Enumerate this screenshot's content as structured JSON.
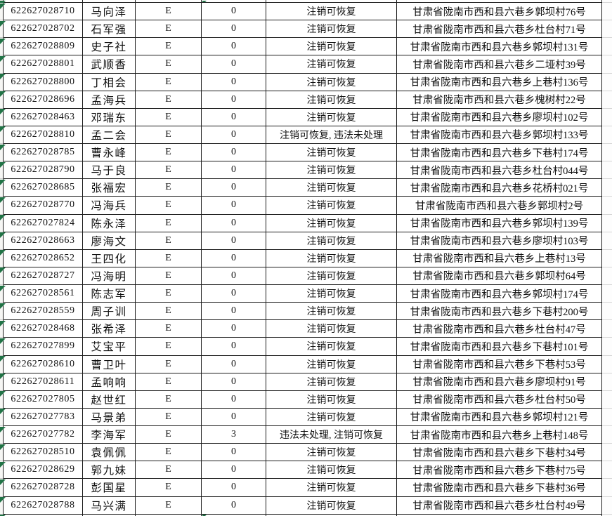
{
  "sheet": {
    "kind": "spreadsheet-grid",
    "fields": [
      "id",
      "name",
      "grade",
      "count",
      "status",
      "address"
    ],
    "rows": [
      {
        "id": "622627028710",
        "name": "马向泽",
        "grade": "E",
        "count": "0",
        "status": "注销可恢复",
        "address": "甘肃省陇南市西和县六巷乡郭坝村76号"
      },
      {
        "id": "622627028702",
        "name": "石军强",
        "grade": "E",
        "count": "0",
        "status": "注销可恢复",
        "address": "甘肃省陇南市西和县六巷乡杜台村71号"
      },
      {
        "id": "622627028809",
        "name": "史子社",
        "grade": "E",
        "count": "0",
        "status": "注销可恢复",
        "address": "甘肃省陇南市西和县六巷乡郭坝村131号"
      },
      {
        "id": "622627028801",
        "name": "武顺香",
        "grade": "E",
        "count": "0",
        "status": "注销可恢复",
        "address": "甘肃省陇南市西和县六巷乡二垭村39号"
      },
      {
        "id": "622627028800",
        "name": "丁相会",
        "grade": "E",
        "count": "0",
        "status": "注销可恢复",
        "address": "甘肃省陇南市西和县六巷乡上巷村136号"
      },
      {
        "id": "622627028696",
        "name": "孟海兵",
        "grade": "E",
        "count": "0",
        "status": "注销可恢复",
        "address": "甘肃省陇南市西和县六巷乡槐树村22号"
      },
      {
        "id": "622627028463",
        "name": "邓瑞东",
        "grade": "E",
        "count": "0",
        "status": "注销可恢复",
        "address": "甘肃省陇南市西和县六巷乡廖坝村102号"
      },
      {
        "id": "622627028810",
        "name": "孟二会",
        "grade": "E",
        "count": "0",
        "status": "注销可恢复, 违法未处理",
        "address": "甘肃省陇南市西和县六巷乡郭坝村133号"
      },
      {
        "id": "622627028785",
        "name": "曹永峰",
        "grade": "E",
        "count": "0",
        "status": "注销可恢复",
        "address": "甘肃省陇南市西和县六巷乡下巷村174号"
      },
      {
        "id": "622627028790",
        "name": "马于良",
        "grade": "E",
        "count": "0",
        "status": "注销可恢复",
        "address": "甘肃省陇南市西和县六巷乡杜台村044号"
      },
      {
        "id": "622627028685",
        "name": "张福宏",
        "grade": "E",
        "count": "0",
        "status": "注销可恢复",
        "address": "甘肃省陇南市西和县六巷乡花桥村021号"
      },
      {
        "id": "622627028770",
        "name": "冯海兵",
        "grade": "E",
        "count": "0",
        "status": "注销可恢复",
        "address": "甘肃省陇南市西和县六巷乡郭坝村2号"
      },
      {
        "id": "622627027824",
        "name": "陈永泽",
        "grade": "E",
        "count": "0",
        "status": "注销可恢复",
        "address": "甘肃省陇南市西和县六巷乡郭坝村139号"
      },
      {
        "id": "622627028663",
        "name": "廖海文",
        "grade": "E",
        "count": "0",
        "status": "注销可恢复",
        "address": "甘肃省陇南市西和县六巷乡廖坝村103号"
      },
      {
        "id": "622627028652",
        "name": "王四化",
        "grade": "E",
        "count": "0",
        "status": "注销可恢复",
        "address": "甘肃省陇南市西和县六巷乡上巷村13号"
      },
      {
        "id": "622627028727",
        "name": "冯海明",
        "grade": "E",
        "count": "0",
        "status": "注销可恢复",
        "address": "甘肃省陇南市西和县六巷乡郭坝村64号"
      },
      {
        "id": "622627028561",
        "name": "陈志军",
        "grade": "E",
        "count": "0",
        "status": "注销可恢复",
        "address": "甘肃省陇南市西和县六巷乡郭坝村174号"
      },
      {
        "id": "622627028559",
        "name": "周子训",
        "grade": "E",
        "count": "0",
        "status": "注销可恢复",
        "address": "甘肃省陇南市西和县六巷乡下巷村200号"
      },
      {
        "id": "622627028468",
        "name": "张希泽",
        "grade": "E",
        "count": "0",
        "status": "注销可恢复",
        "address": "甘肃省陇南市西和县六巷乡杜台村47号"
      },
      {
        "id": "622627027899",
        "name": "艾宝平",
        "grade": "E",
        "count": "0",
        "status": "注销可恢复",
        "address": "甘肃省陇南市西和县六巷乡下巷村101号"
      },
      {
        "id": "622627028610",
        "name": "曹卫叶",
        "grade": "E",
        "count": "0",
        "status": "注销可恢复",
        "address": "甘肃省陇南市西和县六巷乡下巷村53号"
      },
      {
        "id": "622627028611",
        "name": "孟响响",
        "grade": "E",
        "count": "0",
        "status": "注销可恢复",
        "address": "甘肃省陇南市西和县六巷乡廖坝村91号"
      },
      {
        "id": "622627027805",
        "name": "赵世红",
        "grade": "E",
        "count": "0",
        "status": "注销可恢复",
        "address": "甘肃省陇南市西和县六巷乡杜台村50号"
      },
      {
        "id": "622627027783",
        "name": "马景弟",
        "grade": "E",
        "count": "0",
        "status": "注销可恢复",
        "address": "甘肃省陇南市西和县六巷乡郭坝村121号"
      },
      {
        "id": "622627027782",
        "name": "李海军",
        "grade": "E",
        "count": "3",
        "status": "违法未处理, 注销可恢复",
        "address": "甘肃省陇南市西和县六巷乡上巷村148号"
      },
      {
        "id": "622627028510",
        "name": "袁佩佩",
        "grade": "E",
        "count": "0",
        "status": "注销可恢复",
        "address": "甘肃省陇南市西和县六巷乡下巷村34号"
      },
      {
        "id": "622627028629",
        "name": "郭九妹",
        "grade": "E",
        "count": "0",
        "status": "注销可恢复",
        "address": "甘肃省陇南市西和县六巷乡下巷村75号"
      },
      {
        "id": "622627028728",
        "name": "彭国星",
        "grade": "E",
        "count": "0",
        "status": "注销可恢复",
        "address": "甘肃省陇南市西和县六巷乡下巷村36号"
      },
      {
        "id": "622627028788",
        "name": "马兴满",
        "grade": "E",
        "count": "0",
        "status": "注销可恢复",
        "address": "甘肃省陇南市西和县六巷乡杜台村49号"
      }
    ]
  },
  "colors": {
    "grid_border": "#1c1c1c",
    "indicator_green": "#217346",
    "cell_bg": "#ffffff",
    "gutter_bg": "#f6f6f4",
    "gutter_line": "#c9c9c9"
  }
}
